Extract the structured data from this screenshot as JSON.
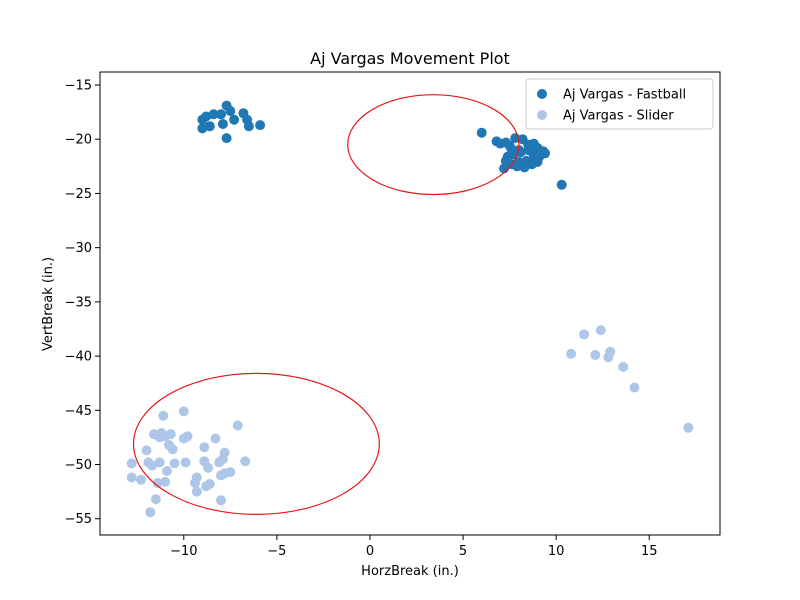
{
  "chart_data": {
    "type": "scatter",
    "title": "Aj Vargas Movement Plot",
    "xlabel": "HorzBreak (in.)",
    "ylabel": "VertBreak (in.)",
    "xlim": [
      -14.5,
      18.8
    ],
    "ylim": [
      -56.5,
      -13.8
    ],
    "xticks": [
      -10,
      -5,
      0,
      5,
      10,
      15
    ],
    "yticks": [
      -15,
      -20,
      -25,
      -30,
      -35,
      -40,
      -45,
      -50,
      -55
    ],
    "grid": false,
    "legend_position": "top-right",
    "series": [
      {
        "name": "Aj Vargas - Fastball",
        "color": "#1f77b4",
        "points": [
          [
            -9.0,
            -18.2
          ],
          [
            -8.8,
            -17.9
          ],
          [
            -8.6,
            -18.8
          ],
          [
            -8.4,
            -17.7
          ],
          [
            -8.0,
            -17.7
          ],
          [
            -7.9,
            -18.6
          ],
          [
            -7.7,
            -16.9
          ],
          [
            -7.5,
            -17.4
          ],
          [
            -7.3,
            -18.2
          ],
          [
            -6.8,
            -17.6
          ],
          [
            -6.6,
            -18.2
          ],
          [
            -6.5,
            -18.8
          ],
          [
            -5.9,
            -18.7
          ],
          [
            -7.7,
            -19.9
          ],
          [
            -9.0,
            -19.0
          ],
          [
            6.0,
            -19.4
          ],
          [
            6.8,
            -20.2
          ],
          [
            7.0,
            -20.4
          ],
          [
            7.3,
            -20.3
          ],
          [
            7.5,
            -20.6
          ],
          [
            7.8,
            -19.9
          ],
          [
            8.2,
            -20.0
          ],
          [
            8.5,
            -20.5
          ],
          [
            8.8,
            -20.4
          ],
          [
            9.0,
            -20.8
          ],
          [
            9.3,
            -21.1
          ],
          [
            9.4,
            -21.3
          ],
          [
            7.4,
            -21.6
          ],
          [
            7.7,
            -21.4
          ],
          [
            8.1,
            -21.2
          ],
          [
            8.5,
            -21.0
          ],
          [
            8.8,
            -21.5
          ],
          [
            9.1,
            -21.6
          ],
          [
            7.3,
            -22.0
          ],
          [
            7.6,
            -22.3
          ],
          [
            8.0,
            -22.1
          ],
          [
            8.4,
            -22.0
          ],
          [
            8.7,
            -22.3
          ],
          [
            9.0,
            -22.1
          ],
          [
            7.2,
            -22.7
          ],
          [
            7.9,
            -22.5
          ],
          [
            8.3,
            -22.6
          ],
          [
            10.3,
            -24.2
          ],
          [
            8.0,
            -21.0
          ],
          [
            7.6,
            -20.9
          ]
        ]
      },
      {
        "name": "Aj Vargas - Slider",
        "color": "#aec7e8",
        "points": [
          [
            -12.8,
            -49.9
          ],
          [
            -12.8,
            -51.2
          ],
          [
            -12.3,
            -51.4
          ],
          [
            -12.0,
            -48.7
          ],
          [
            -11.9,
            -49.8
          ],
          [
            -11.8,
            -54.4
          ],
          [
            -11.7,
            -50.1
          ],
          [
            -11.6,
            -47.2
          ],
          [
            -11.5,
            -53.2
          ],
          [
            -11.4,
            -51.7
          ],
          [
            -11.3,
            -49.8
          ],
          [
            -11.3,
            -47.5
          ],
          [
            -11.2,
            -47.1
          ],
          [
            -11.1,
            -45.5
          ],
          [
            -11.0,
            -47.4
          ],
          [
            -11.0,
            -51.6
          ],
          [
            -10.9,
            -50.6
          ],
          [
            -10.8,
            -48.2
          ],
          [
            -10.7,
            -47.2
          ],
          [
            -10.6,
            -48.6
          ],
          [
            -10.5,
            -49.9
          ],
          [
            -10.0,
            -45.1
          ],
          [
            -10.0,
            -47.6
          ],
          [
            -9.8,
            -47.4
          ],
          [
            -9.9,
            -49.8
          ],
          [
            -9.4,
            -51.7
          ],
          [
            -9.3,
            -52.5
          ],
          [
            -9.3,
            -51.2
          ],
          [
            -8.9,
            -48.4
          ],
          [
            -8.9,
            -49.7
          ],
          [
            -8.8,
            -52.0
          ],
          [
            -8.7,
            -50.3
          ],
          [
            -8.6,
            -51.8
          ],
          [
            -8.3,
            -47.6
          ],
          [
            -8.1,
            -49.8
          ],
          [
            -8.0,
            -51.0
          ],
          [
            -8.0,
            -53.3
          ],
          [
            -7.9,
            -49.5
          ],
          [
            -7.8,
            -48.9
          ],
          [
            -7.8,
            -50.8
          ],
          [
            -7.5,
            -50.7
          ],
          [
            -7.1,
            -46.4
          ],
          [
            -6.7,
            -49.7
          ],
          [
            10.8,
            -39.8
          ],
          [
            11.5,
            -38.0
          ],
          [
            12.1,
            -39.9
          ],
          [
            12.4,
            -37.6
          ],
          [
            12.8,
            -40.1
          ],
          [
            12.9,
            -39.6
          ],
          [
            13.6,
            -41.0
          ],
          [
            14.2,
            -42.9
          ],
          [
            17.1,
            -46.6
          ]
        ]
      }
    ],
    "annotations": [
      {
        "shape": "ellipse",
        "color": "#e41a1c",
        "center": [
          3.4,
          -20.5
        ],
        "rx": 4.6,
        "ry": 4.6
      },
      {
        "shape": "ellipse",
        "color": "#e41a1c",
        "center": [
          -6.1,
          -48.1
        ],
        "rx": 6.6,
        "ry": 6.5
      }
    ]
  }
}
